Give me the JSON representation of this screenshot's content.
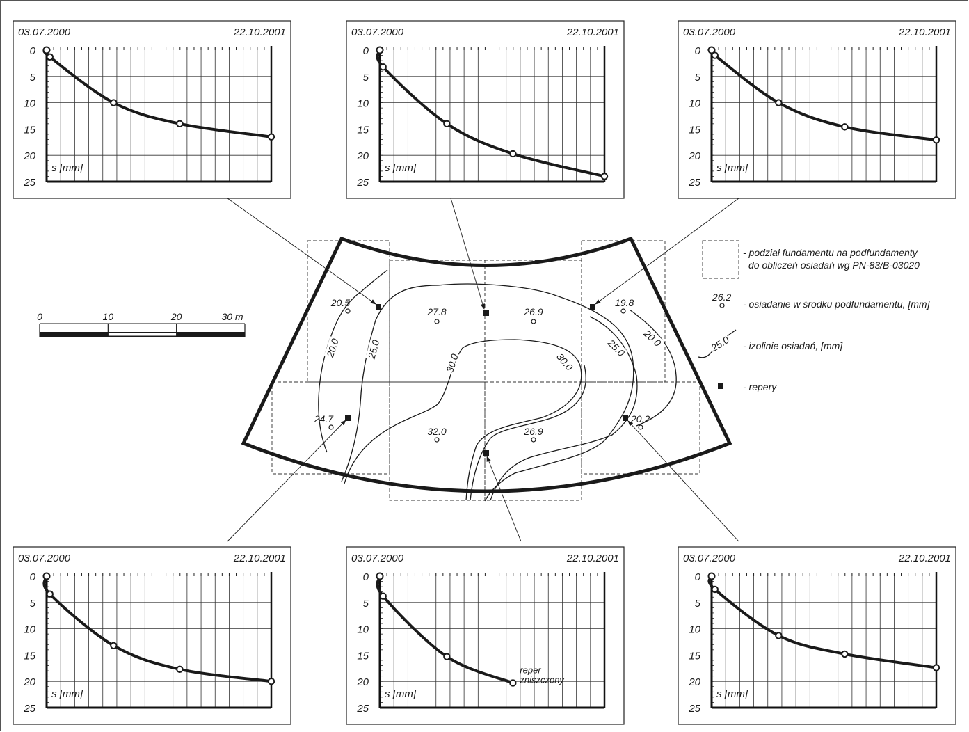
{
  "charts": [
    {
      "date_start": "03.07.2000",
      "date_end": "22.10.2001",
      "y_label": "s [mm]",
      "y_ticks": [
        "0",
        "5",
        "10",
        "15",
        "20",
        "25"
      ],
      "note": ""
    },
    {
      "date_start": "03.07.2000",
      "date_end": "22.10.2001",
      "y_label": "s [mm]",
      "y_ticks": [
        "0",
        "5",
        "10",
        "15",
        "20",
        "25"
      ],
      "note": ""
    },
    {
      "date_start": "03.07.2000",
      "date_end": "22.10.2001",
      "y_label": "s [mm]",
      "y_ticks": [
        "0",
        "5",
        "10",
        "15",
        "20",
        "25"
      ],
      "note": ""
    },
    {
      "date_start": "03.07.2000",
      "date_end": "22.10.2001",
      "y_label": "s [mm]",
      "y_ticks": [
        "0",
        "5",
        "10",
        "15",
        "20",
        "25"
      ],
      "note": ""
    },
    {
      "date_start": "03.07.2000",
      "date_end": "22.10.2001",
      "y_label": "s [mm]",
      "y_ticks": [
        "0",
        "5",
        "10",
        "15",
        "20",
        "25"
      ],
      "note": [
        "reper",
        "zniszczony"
      ]
    },
    {
      "date_start": "03.07.2000",
      "date_end": "22.10.2001",
      "y_label": "s [mm]",
      "y_ticks": [
        "0",
        "5",
        "10",
        "15",
        "20",
        "25"
      ],
      "note": ""
    }
  ],
  "chart_data": [
    {
      "type": "line",
      "x": [
        "03.07.2000",
        "10.07.2000",
        "22.11.2000",
        "11.04.2001",
        "22.10.2001"
      ],
      "series": [
        {
          "values": [
            0,
            1.3,
            10,
            14,
            16.5
          ]
        }
      ],
      "ylim": [
        25,
        0
      ],
      "grid": true
    },
    {
      "type": "line",
      "x": [
        "03.07.2000",
        "10.07.2000",
        "22.11.2000",
        "11.04.2001",
        "22.10.2001"
      ],
      "series": [
        {
          "values": [
            0,
            3.2,
            14,
            19.7,
            24
          ]
        }
      ],
      "ylim": [
        25,
        0
      ],
      "grid": true
    },
    {
      "type": "line",
      "x": [
        "03.07.2000",
        "10.07.2000",
        "22.11.2000",
        "11.04.2001",
        "22.10.2001"
      ],
      "series": [
        {
          "values": [
            0,
            1,
            10,
            14.6,
            17.1
          ]
        }
      ],
      "ylim": [
        25,
        0
      ],
      "grid": true
    },
    {
      "type": "line",
      "x": [
        "03.07.2000",
        "10.07.2000",
        "22.11.2000",
        "11.04.2001",
        "22.10.2001"
      ],
      "series": [
        {
          "values": [
            0,
            3.4,
            13.2,
            17.7,
            20
          ]
        }
      ],
      "ylim": [
        25,
        0
      ],
      "grid": true
    },
    {
      "type": "line",
      "x": [
        "03.07.2000",
        "10.07.2000",
        "22.11.2000",
        "11.04.2001"
      ],
      "series": [
        {
          "values": [
            0,
            3.8,
            15.3,
            20.3
          ]
        }
      ],
      "ylim": [
        25,
        0
      ],
      "grid": true
    },
    {
      "type": "line",
      "x": [
        "03.07.2000",
        "10.07.2000",
        "22.11.2000",
        "11.04.2001",
        "22.10.2001"
      ],
      "series": [
        {
          "values": [
            0,
            2.5,
            11.3,
            14.8,
            17.4
          ]
        }
      ],
      "ylim": [
        25,
        0
      ],
      "grid": true
    }
  ],
  "scale_bar": {
    "labels": [
      "0",
      "10",
      "20",
      "30 m"
    ]
  },
  "map": {
    "point_values": [
      "20.5",
      "27.8",
      "26.9",
      "19.8",
      "24.7",
      "32.0",
      "26.9",
      "20.2"
    ],
    "isoline_labels": [
      "20.0",
      "25.0",
      "30.0",
      "30.0",
      "25.0",
      "20.0"
    ]
  },
  "legend": {
    "items": [
      {
        "text": [
          "- podział fundamentu na podfundamenty",
          "do obliczeń osiadań wg PN-83/B-03020"
        ]
      },
      {
        "text": [
          "- osiadanie w środku podfundamentu, [mm]"
        ],
        "sample": "26.2"
      },
      {
        "text": [
          "- izolinie osiadań, [mm]"
        ],
        "sample": "25.0"
      },
      {
        "text": [
          "- repery"
        ]
      }
    ]
  }
}
